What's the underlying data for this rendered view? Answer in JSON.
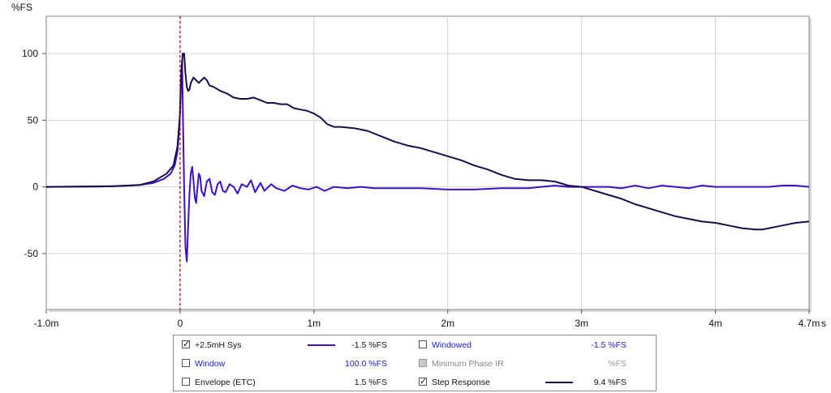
{
  "chart_data": {
    "type": "line",
    "ylabel": "%FS",
    "xlabel": "",
    "xlim": [
      -1.0,
      4.7
    ],
    "ylim": [
      -92,
      128
    ],
    "x_ticks": [
      -1.0,
      0,
      1,
      2,
      3,
      4,
      4.7
    ],
    "x_tick_labels": [
      "-1.0m",
      "0",
      "1m",
      "2m",
      "3m",
      "4m",
      "4.7m"
    ],
    "x_unit_label": "s",
    "y_ticks": [
      100,
      50,
      0,
      -50
    ],
    "y_tick_labels": [
      "100",
      "50",
      "0",
      "-50"
    ],
    "grid": true,
    "marker_x": 0.0,
    "marker_color": "#cc0000",
    "series": [
      {
        "name": "+2.5mH Sys",
        "color": "#3b12c4",
        "points": [
          [
            -1.0,
            0
          ],
          [
            -0.6,
            0.2
          ],
          [
            -0.4,
            0.8
          ],
          [
            -0.3,
            1.5
          ],
          [
            -0.2,
            3
          ],
          [
            -0.12,
            6
          ],
          [
            -0.07,
            10
          ],
          [
            -0.04,
            16
          ],
          [
            -0.02,
            26
          ],
          [
            -0.005,
            45
          ],
          [
            0.005,
            75
          ],
          [
            0.015,
            95
          ],
          [
            0.022,
            50
          ],
          [
            0.03,
            0
          ],
          [
            0.04,
            -45
          ],
          [
            0.05,
            -56
          ],
          [
            0.06,
            -30
          ],
          [
            0.07,
            -5
          ],
          [
            0.08,
            10
          ],
          [
            0.09,
            15
          ],
          [
            0.1,
            5
          ],
          [
            0.11,
            -8
          ],
          [
            0.12,
            -12
          ],
          [
            0.13,
            0
          ],
          [
            0.14,
            10
          ],
          [
            0.15,
            8
          ],
          [
            0.16,
            -3
          ],
          [
            0.18,
            -7
          ],
          [
            0.2,
            4
          ],
          [
            0.22,
            6
          ],
          [
            0.24,
            -4
          ],
          [
            0.26,
            -6
          ],
          [
            0.28,
            2
          ],
          [
            0.3,
            4
          ],
          [
            0.32,
            -3
          ],
          [
            0.34,
            -4
          ],
          [
            0.37,
            2
          ],
          [
            0.4,
            0
          ],
          [
            0.43,
            -5
          ],
          [
            0.46,
            2
          ],
          [
            0.5,
            0
          ],
          [
            0.53,
            5
          ],
          [
            0.56,
            -4
          ],
          [
            0.6,
            3
          ],
          [
            0.63,
            -3
          ],
          [
            0.68,
            2
          ],
          [
            0.72,
            -1
          ],
          [
            0.78,
            -3
          ],
          [
            0.84,
            1
          ],
          [
            0.9,
            -1
          ],
          [
            0.96,
            -2
          ],
          [
            1.02,
            0
          ],
          [
            1.08,
            -3
          ],
          [
            1.15,
            0
          ],
          [
            1.25,
            -1
          ],
          [
            1.35,
            0
          ],
          [
            1.45,
            -1
          ],
          [
            1.6,
            -1
          ],
          [
            1.8,
            -1
          ],
          [
            2.0,
            -2
          ],
          [
            2.2,
            -2
          ],
          [
            2.4,
            -1
          ],
          [
            2.6,
            -1
          ],
          [
            2.7,
            0
          ],
          [
            2.8,
            1
          ],
          [
            2.9,
            0
          ],
          [
            3.0,
            0
          ],
          [
            3.1,
            0
          ],
          [
            3.2,
            0
          ],
          [
            3.3,
            -1
          ],
          [
            3.4,
            1
          ],
          [
            3.5,
            -1
          ],
          [
            3.6,
            1
          ],
          [
            3.7,
            0
          ],
          [
            3.8,
            -1
          ],
          [
            3.9,
            1
          ],
          [
            4.0,
            0
          ],
          [
            4.1,
            0
          ],
          [
            4.2,
            0
          ],
          [
            4.3,
            0
          ],
          [
            4.4,
            0
          ],
          [
            4.5,
            1
          ],
          [
            4.6,
            1
          ],
          [
            4.7,
            0
          ]
        ]
      },
      {
        "name": "Step Response",
        "color": "#1a0d4a",
        "points": [
          [
            -1.0,
            0
          ],
          [
            -0.5,
            0.5
          ],
          [
            -0.3,
            1.5
          ],
          [
            -0.2,
            4
          ],
          [
            -0.1,
            10
          ],
          [
            -0.05,
            16
          ],
          [
            -0.02,
            30
          ],
          [
            0.0,
            55
          ],
          [
            0.01,
            88
          ],
          [
            0.02,
            100
          ],
          [
            0.03,
            100
          ],
          [
            0.04,
            85
          ],
          [
            0.05,
            75
          ],
          [
            0.06,
            72
          ],
          [
            0.07,
            73
          ],
          [
            0.08,
            78
          ],
          [
            0.1,
            82
          ],
          [
            0.12,
            80
          ],
          [
            0.14,
            78
          ],
          [
            0.16,
            80
          ],
          [
            0.18,
            82
          ],
          [
            0.2,
            80
          ],
          [
            0.22,
            76
          ],
          [
            0.25,
            75
          ],
          [
            0.3,
            72
          ],
          [
            0.35,
            70
          ],
          [
            0.4,
            67
          ],
          [
            0.45,
            66
          ],
          [
            0.5,
            66
          ],
          [
            0.55,
            67
          ],
          [
            0.6,
            65
          ],
          [
            0.65,
            63
          ],
          [
            0.7,
            63
          ],
          [
            0.75,
            62
          ],
          [
            0.8,
            62
          ],
          [
            0.85,
            59
          ],
          [
            0.9,
            58
          ],
          [
            0.95,
            57
          ],
          [
            1.0,
            55
          ],
          [
            1.05,
            52
          ],
          [
            1.1,
            47
          ],
          [
            1.15,
            45
          ],
          [
            1.2,
            45
          ],
          [
            1.3,
            44
          ],
          [
            1.4,
            42
          ],
          [
            1.5,
            38
          ],
          [
            1.6,
            34
          ],
          [
            1.7,
            31
          ],
          [
            1.8,
            29
          ],
          [
            1.9,
            26
          ],
          [
            2.0,
            23
          ],
          [
            2.1,
            20
          ],
          [
            2.2,
            16
          ],
          [
            2.3,
            13
          ],
          [
            2.4,
            9
          ],
          [
            2.5,
            6
          ],
          [
            2.6,
            5
          ],
          [
            2.7,
            5
          ],
          [
            2.8,
            4
          ],
          [
            2.9,
            1
          ],
          [
            3.0,
            0
          ],
          [
            3.1,
            -3
          ],
          [
            3.2,
            -6
          ],
          [
            3.3,
            -9
          ],
          [
            3.4,
            -13
          ],
          [
            3.5,
            -16
          ],
          [
            3.6,
            -19
          ],
          [
            3.7,
            -22
          ],
          [
            3.8,
            -24
          ],
          [
            3.9,
            -26
          ],
          [
            4.0,
            -27
          ],
          [
            4.1,
            -29
          ],
          [
            4.2,
            -31
          ],
          [
            4.3,
            -32
          ],
          [
            4.35,
            -32
          ],
          [
            4.4,
            -31
          ],
          [
            4.5,
            -29
          ],
          [
            4.6,
            -27
          ],
          [
            4.7,
            -26
          ]
        ]
      }
    ]
  },
  "legend": {
    "rows": [
      {
        "checked": true,
        "disabled": false,
        "label": "+2.5mH Sys",
        "label_style": "black",
        "swatch_color": "#3b12c4",
        "value": "-1.5 %FS",
        "value_style": "black"
      },
      {
        "checked": false,
        "disabled": false,
        "label": "Window",
        "label_style": "blue",
        "swatch_color": "",
        "value": "100.0 %FS",
        "value_style": "blue"
      },
      {
        "checked": false,
        "disabled": false,
        "label": "Envelope (ETC)",
        "label_style": "black",
        "swatch_color": "",
        "value": "1.5 %FS",
        "value_style": "black"
      },
      {
        "checked": false,
        "disabled": false,
        "label": "Windowed",
        "label_style": "blue",
        "swatch_color": "",
        "value": "-1.5 %FS",
        "value_style": "blue"
      },
      {
        "checked": false,
        "disabled": true,
        "label": "Minimum Phase IR",
        "label_style": "gray",
        "swatch_color": "",
        "value": "%FS",
        "value_style": "gray"
      },
      {
        "checked": true,
        "disabled": false,
        "label": "Step Response",
        "label_style": "black",
        "swatch_color": "#1a0d4a",
        "value": "9.4 %FS",
        "value_style": "black"
      }
    ]
  }
}
